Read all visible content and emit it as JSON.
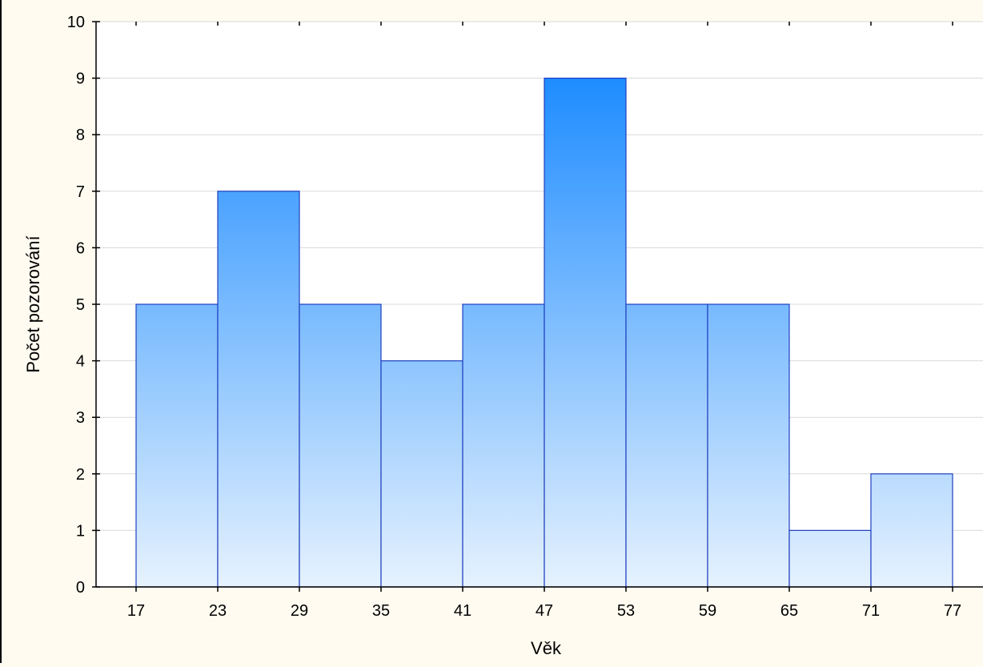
{
  "chart_data": {
    "type": "bar",
    "title": "",
    "xlabel": "Věk",
    "ylabel": "Počet pozorování",
    "bin_edges": [
      17,
      23,
      29,
      35,
      41,
      47,
      53,
      59,
      65,
      71,
      77
    ],
    "x_tick_labels": [
      "17",
      "23",
      "29",
      "35",
      "41",
      "47",
      "53",
      "59",
      "65",
      "71",
      "77"
    ],
    "values": [
      5,
      7,
      5,
      4,
      5,
      9,
      5,
      5,
      1,
      2
    ],
    "y_tick_labels": [
      "0",
      "1",
      "2",
      "3",
      "4",
      "5",
      "6",
      "7",
      "8",
      "9",
      "10"
    ],
    "ylim": [
      0,
      10
    ],
    "grid": "horizontal",
    "legend": "none",
    "colors": {
      "bar_top": "#1e8cff",
      "bar_bottom": "#e6f2fe",
      "bar_edge": "#1f3fbf",
      "plot_bg": "#ffffff",
      "grid": "#d9d9d9"
    }
  }
}
